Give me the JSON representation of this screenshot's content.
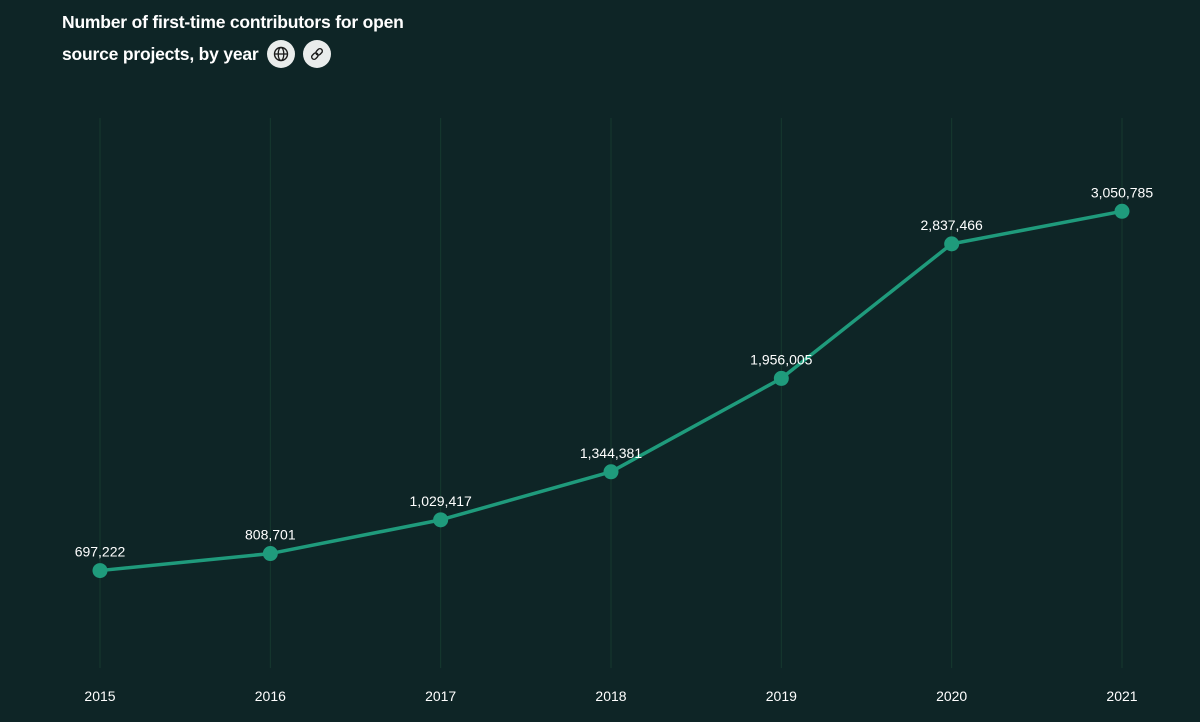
{
  "title": {
    "line1": "Number of first-time contributors for open",
    "line2": "source projects, by year"
  },
  "icons": {
    "globe": "globe-icon",
    "link": "link-icon"
  },
  "colors": {
    "background": "#0e2526",
    "line": "#1f9b7c",
    "grid": "#16392f",
    "text": "#ffffff"
  },
  "chart_data": {
    "type": "line",
    "title": "Number of first-time contributors for open source projects, by year",
    "xlabel": "",
    "ylabel": "",
    "categories": [
      "2015",
      "2016",
      "2017",
      "2018",
      "2019",
      "2020",
      "2021"
    ],
    "series": [
      {
        "name": "First-time contributors",
        "values": [
          697222,
          808701,
          1029417,
          1344381,
          1956005,
          2837466,
          3050785
        ],
        "labels": [
          "697,222",
          "808,701",
          "1,029,417",
          "1,344,381",
          "1,956,005",
          "2,837,466",
          "3,050,785"
        ]
      }
    ],
    "ylim": [
      0,
      3400000
    ],
    "grid": "vertical",
    "legend": "none"
  }
}
